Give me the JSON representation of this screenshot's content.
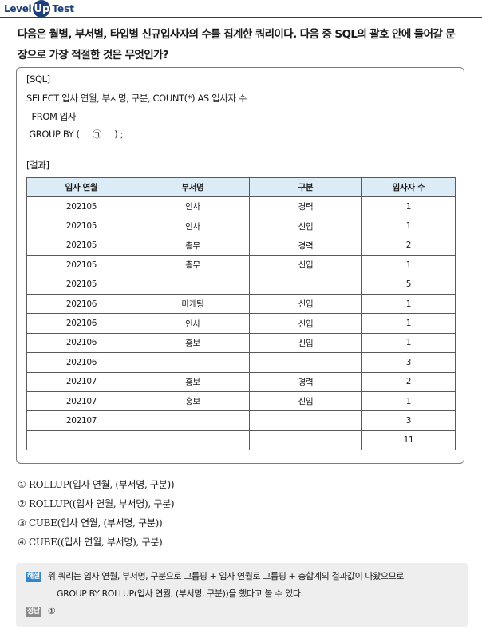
{
  "header": {
    "level": "Level",
    "up": "Up",
    "test": "Test"
  },
  "question": {
    "line1": "다음은 월별, 부서별, 타입별 신규입사자의 수를 집계한 쿼리이다. 다음 중 SQL의 괄호 안에 들어갈 문",
    "line2": "장으로 가장 적절한 것은 무엇인가?"
  },
  "sql": {
    "label": "[SQL]",
    "lines": [
      "SELECT 입사 연월, 부서명, 구분, COUNT(*) AS 입사자 수",
      "  FROM 입사",
      " GROUP BY (     ㉠     ) ;"
    ]
  },
  "result": {
    "label": "[결과]",
    "columns": [
      "입사 연월",
      "부서명",
      "구분",
      "입사자 수"
    ],
    "rows": [
      [
        "202105",
        "인사",
        "경력",
        "1"
      ],
      [
        "202105",
        "인사",
        "신입",
        "1"
      ],
      [
        "202105",
        "총무",
        "경력",
        "2"
      ],
      [
        "202105",
        "총무",
        "신입",
        "1"
      ],
      [
        "202105",
        "",
        "",
        "5"
      ],
      [
        "202106",
        "마케팅",
        "신입",
        "1"
      ],
      [
        "202106",
        "인사",
        "신입",
        "1"
      ],
      [
        "202106",
        "홍보",
        "신입",
        "1"
      ],
      [
        "202106",
        "",
        "",
        "3"
      ],
      [
        "202107",
        "홍보",
        "경력",
        "2"
      ],
      [
        "202107",
        "홍보",
        "신입",
        "1"
      ],
      [
        "202107",
        "",
        "",
        "3"
      ],
      [
        "",
        "",
        "",
        "11"
      ]
    ]
  },
  "choices": [
    "① ROLLUP(입사 연월, (부서명, 구분))",
    "② ROLLUP((입사 연월, 부서명), 구분)",
    "③ CUBE(입사 연월, (부서명, 구분))",
    "④ CUBE((입사 연월, 부서명), 구분)"
  ],
  "explanation": {
    "tag": "해설",
    "line1": "위 쿼리는 입사 연월, 부서명, 구분으로 그룹핑 + 입사 연월로 그룹핑 + 총합계의 결과값이 나왔으므로",
    "line2": "GROUP BY ROLLUP(입사 연월, (부서명, 구분))을 했다고 볼 수 있다.",
    "answer_tag": "정답",
    "answer": "①"
  },
  "colors": {
    "brand": "#1d3f7a",
    "table_header": "#dcecf7",
    "explain_bg": "#eeeeee",
    "tag_blue": "#2f86c8",
    "tag_gray": "#8a8a8a"
  }
}
